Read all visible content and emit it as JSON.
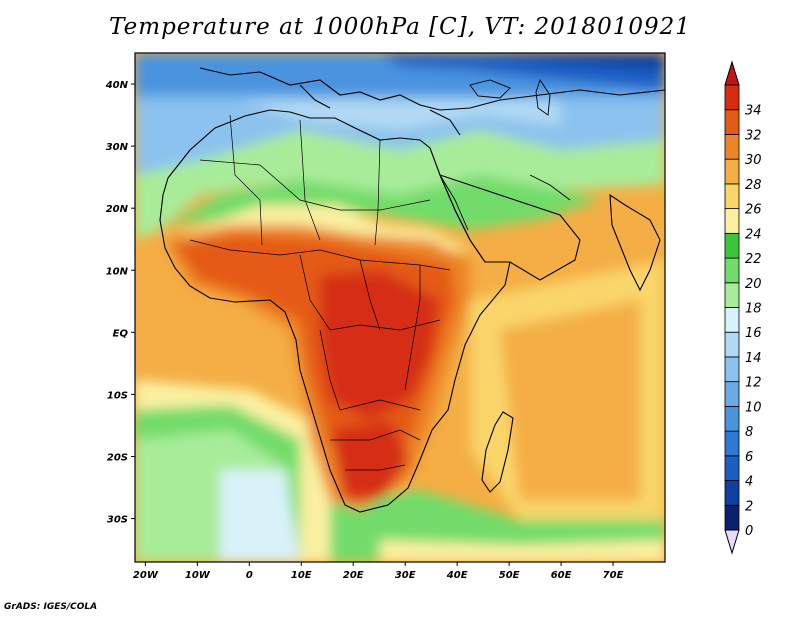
{
  "title": "Temperature at 1000hPa [C], VT: 2018010921",
  "credit": "GrADS: IGES/COLA",
  "map": {
    "lon_range": [
      -22,
      80
    ],
    "lat_range": [
      -37,
      45
    ],
    "lat_ticks": [
      {
        "value": 40,
        "label": "40N"
      },
      {
        "value": 30,
        "label": "30N"
      },
      {
        "value": 20,
        "label": "20N"
      },
      {
        "value": 10,
        "label": "10N"
      },
      {
        "value": 0,
        "label": "EQ"
      },
      {
        "value": -10,
        "label": "10S"
      },
      {
        "value": -20,
        "label": "20S"
      },
      {
        "value": -30,
        "label": "30S"
      }
    ],
    "lon_ticks": [
      {
        "value": -20,
        "label": "20W"
      },
      {
        "value": -10,
        "label": "10W"
      },
      {
        "value": 0,
        "label": "0"
      },
      {
        "value": 10,
        "label": "10E"
      },
      {
        "value": 20,
        "label": "20E"
      },
      {
        "value": 30,
        "label": "30E"
      },
      {
        "value": 40,
        "label": "40E"
      },
      {
        "value": 50,
        "label": "50E"
      },
      {
        "value": 60,
        "label": "60E"
      },
      {
        "value": 70,
        "label": "70E"
      }
    ]
  },
  "colorbar": {
    "levels": [
      "0",
      "2",
      "4",
      "6",
      "8",
      "10",
      "12",
      "14",
      "16",
      "18",
      "20",
      "22",
      "24",
      "26",
      "28",
      "30",
      "32",
      "34"
    ],
    "colors": [
      "#0a1f6e",
      "#0f3fa0",
      "#1c5fc4",
      "#2f79d6",
      "#4a93df",
      "#6aabe6",
      "#8cc2ee",
      "#b2d9f4",
      "#d9f2fa",
      "#a8ec9a",
      "#72dc6a",
      "#3cc43c",
      "#fbf0a2",
      "#f9d56a",
      "#f4ae45",
      "#ed8526",
      "#e45a18",
      "#d62d12"
    ],
    "under_color": "#e4dcfa",
    "over_color": "#c41410"
  }
}
